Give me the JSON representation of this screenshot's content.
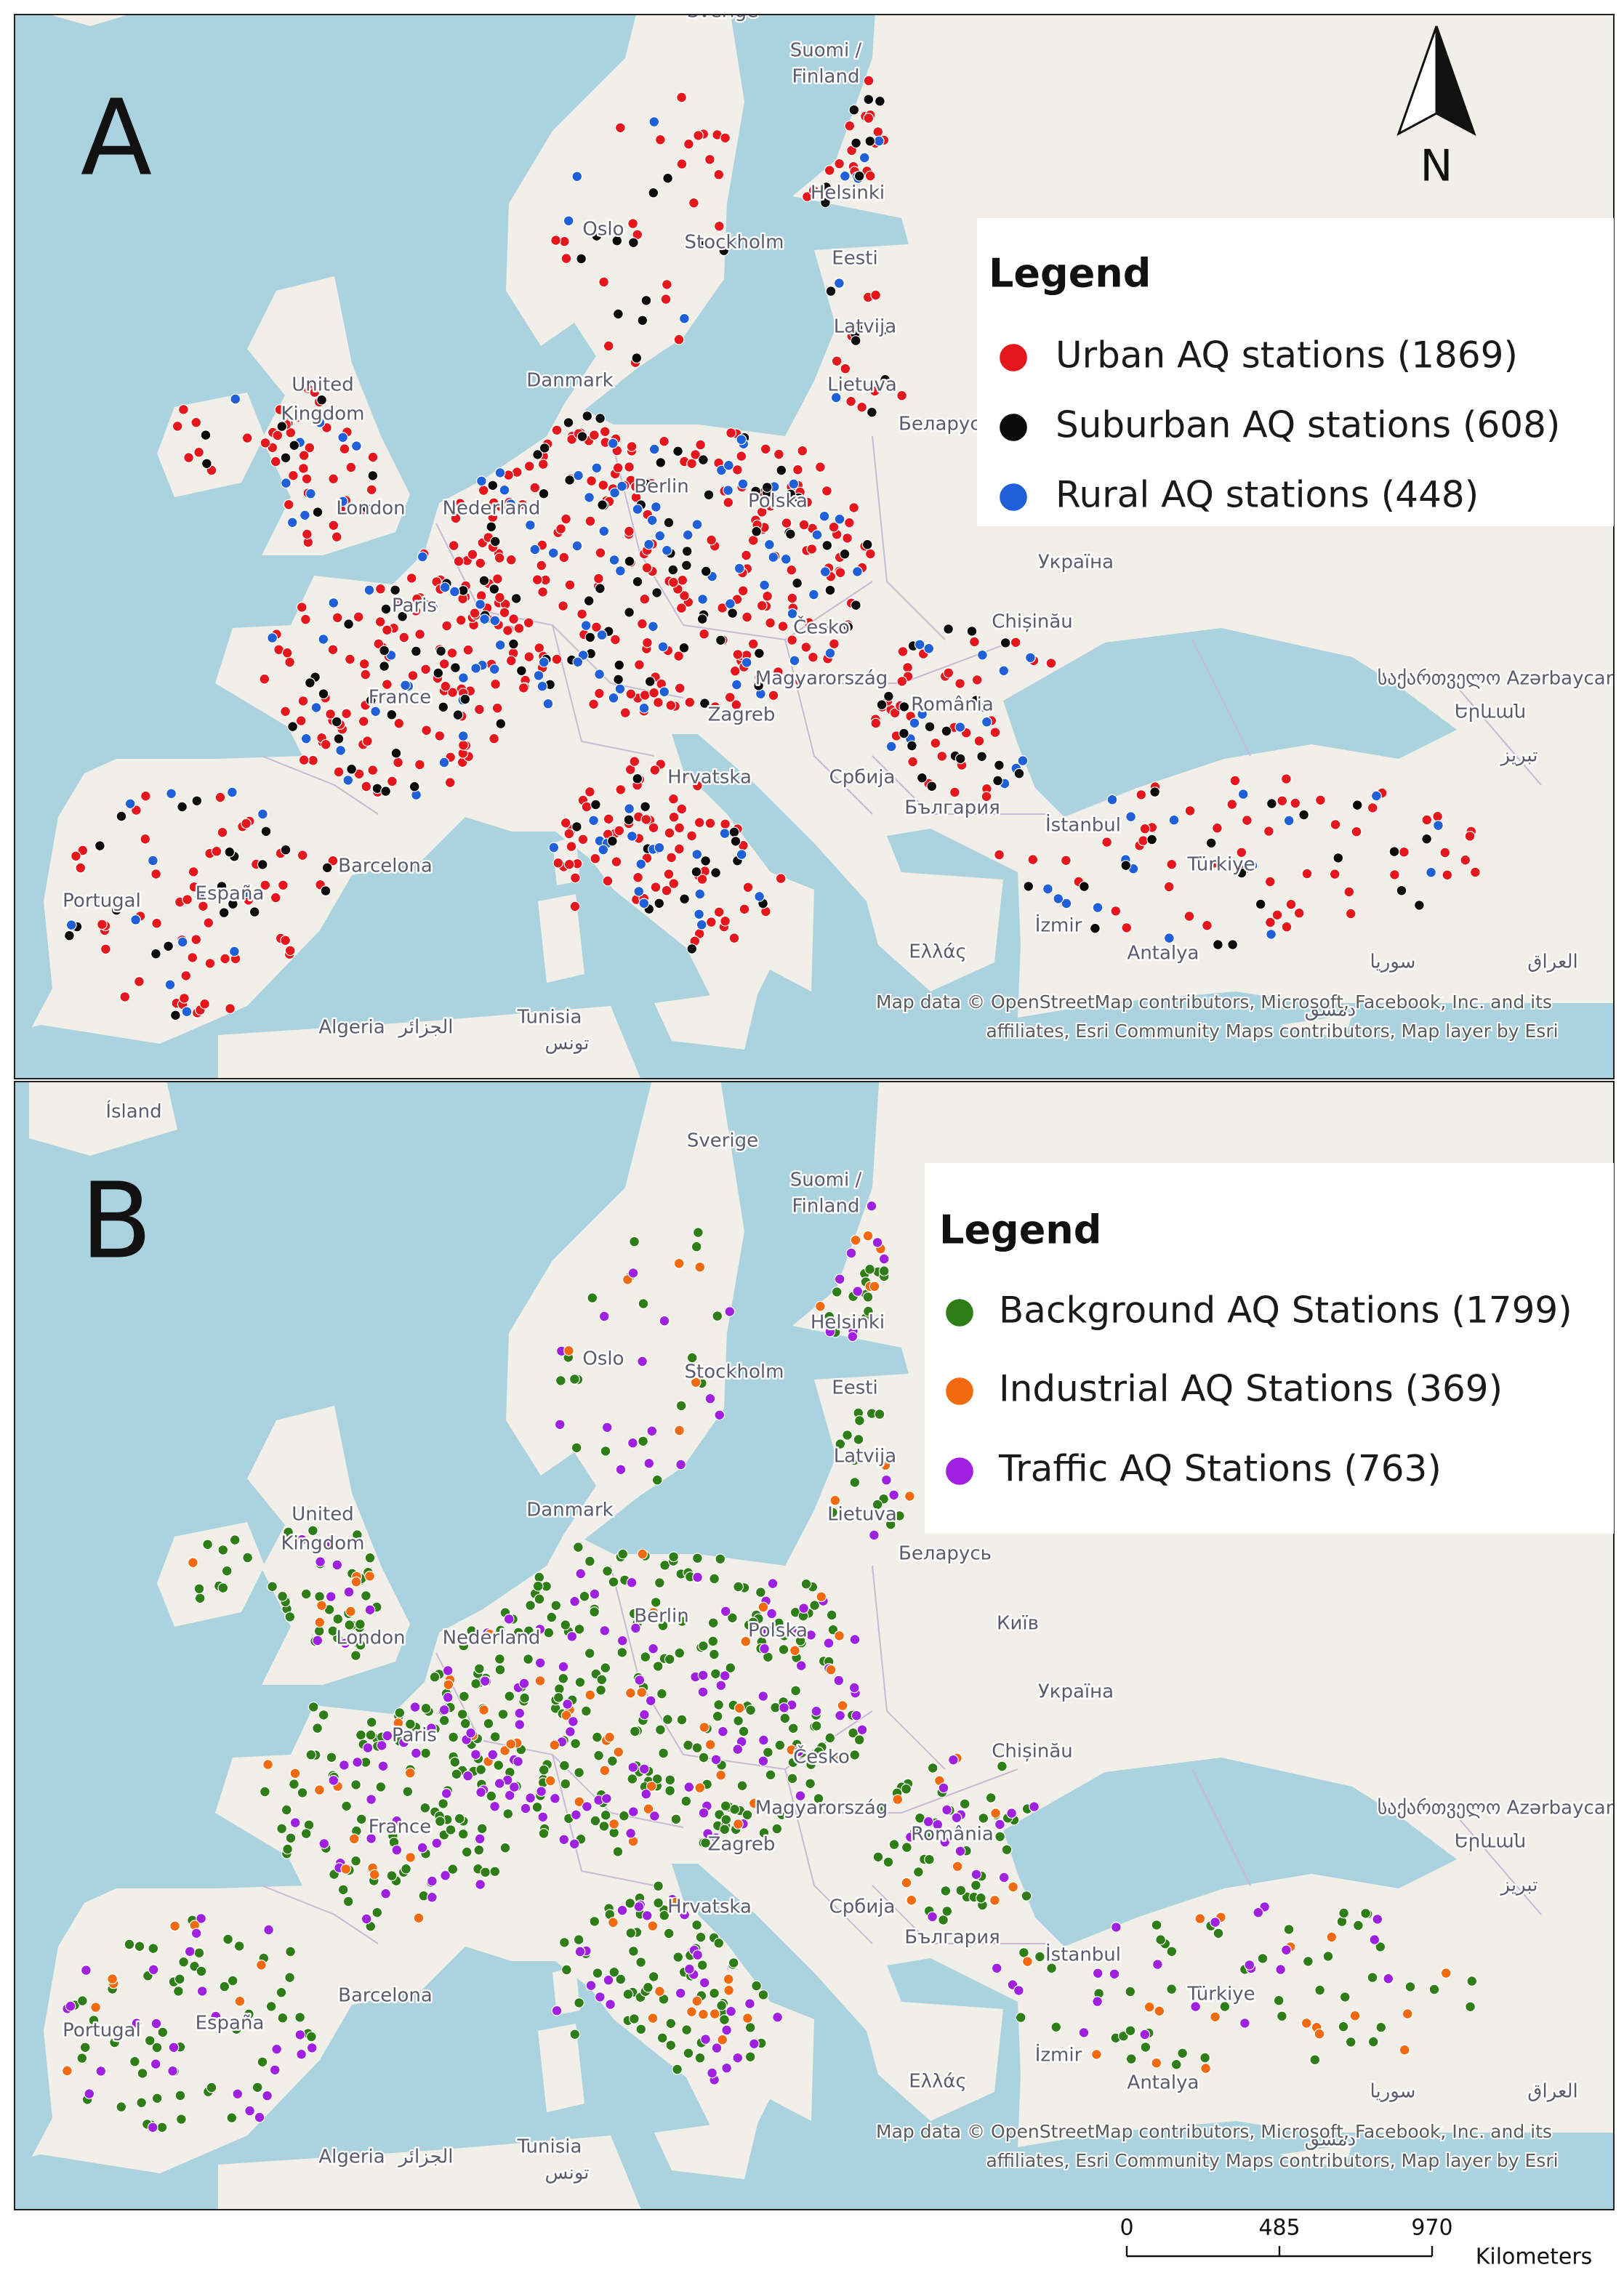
{
  "panels": [
    {
      "label": "A",
      "legend": {
        "title": "Legend",
        "items": [
          {
            "label": "Urban AQ stations (1869)",
            "color": "#e5161c"
          },
          {
            "label": "Suburban AQ stations (608)",
            "color": "#0b0b0b"
          },
          {
            "label": "Rural AQ stations (448)",
            "color": "#1f5fd8"
          }
        ]
      }
    },
    {
      "label": "B",
      "legend": {
        "title": "Legend",
        "items": [
          {
            "label": "Background AQ Stations (1799)",
            "color": "#2f7d16"
          },
          {
            "label": "Industrial AQ Stations (369)",
            "color": "#f26a10"
          },
          {
            "label": "Traffic AQ Stations (763)",
            "color": "#a020e0"
          }
        ]
      }
    }
  ],
  "places": [
    "Ísland",
    "Sverige",
    "Suomi /",
    "Finland",
    "Helsinki",
    "Oslo",
    "Stockholm",
    "Eesti",
    "Latvija",
    "Lietuva",
    "Danmark",
    "United",
    "Kingdom",
    "Беларусь",
    "London",
    "Nederland",
    "Berlin",
    "Polska",
    "Київ",
    "Україна",
    "Paris",
    "Chișinău",
    "Česko",
    "France",
    "Magyarország",
    "România",
    "Zagreb",
    "საქართველო Azərbaycan",
    "Երևան",
    "تبریز",
    "Hrvatska",
    "Србија",
    "България",
    "İstanbul",
    "Türkiye",
    "Barcelona",
    "Portugal",
    "España",
    "İzmir",
    "Ελλάς",
    "Antalya",
    "سوريا",
    "العراق",
    "Algeria",
    "الجزائر",
    "Tunisia",
    "تونس",
    "دمشق"
  ],
  "attribution": [
    "Map data © OpenStreetMap contributors, Microsoft, Facebook, Inc. and its",
    "affiliates, Esri Community Maps contributors, Map layer by Esri"
  ],
  "north": "N",
  "scale": {
    "ticks": [
      "0",
      "485",
      "970"
    ],
    "unit": "Kilometers"
  }
}
